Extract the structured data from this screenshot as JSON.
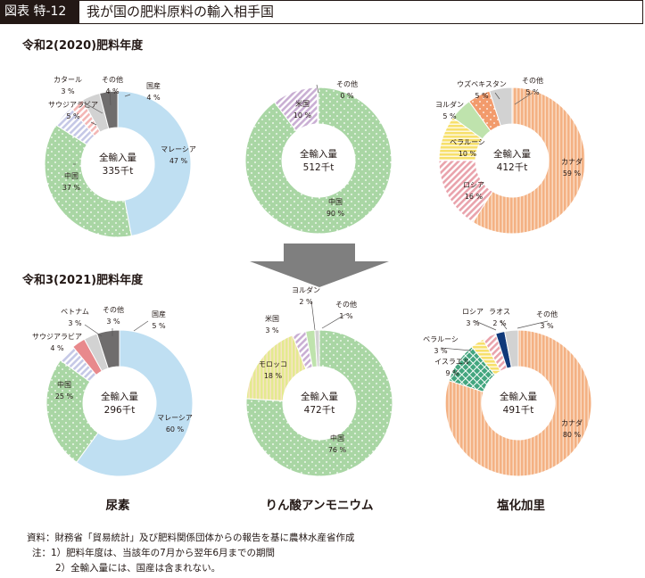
{
  "figure": {
    "tag": "図表 特-12",
    "title": "我が国の肥料原料の輸入相手国"
  },
  "year_labels": [
    "令和2(2020)肥料年度",
    "令和3(2021)肥料年度"
  ],
  "product_labels": [
    "尿素",
    "りん酸アンモニウム",
    "塩化加里"
  ],
  "notes": [
    "資料：財務省「貿易統計」及び肥料関係団体からの報告を基に農林水産省作成",
    "注：1）肥料年度は、当該年の7月から翌年6月までの期間",
    "2）全輸入量には、国産は含まれない。"
  ],
  "colors": {
    "malaysia": "#bfdff2",
    "china": "#a9d6a4",
    "canada": "#f4b183",
    "russia": "#e9a3ac",
    "morocco": "#e4ea8f",
    "saudi": "#c5c8e6",
    "qatar": "#f3b6b4",
    "vietnam": "#e8898c",
    "domestic": "#6f6d6d",
    "other": "#d2d2d2",
    "usa": "#c9aed3",
    "belarus": "#f7e06c",
    "jordan": "#bfe3ad",
    "uzbek": "#f29b6c",
    "israel": "#43a67f",
    "laos": "#10397a",
    "arrow": "#7f7f7f"
  },
  "chart_data": [
    {
      "type": "pie",
      "donut": true,
      "year": "令和2(2020)肥料年度",
      "product": "尿素",
      "center_label": "全輸入量",
      "center_value": "335千t",
      "slices": [
        {
          "name": "マレーシア",
          "value": 47,
          "label": "47 %",
          "color": "malaysia",
          "pattern": "plain"
        },
        {
          "name": "中国",
          "value": 37,
          "label": "37 %",
          "color": "china",
          "pattern": "dots"
        },
        {
          "name": "サウジアラビア",
          "value": 5,
          "label": "5 %",
          "color": "saudi",
          "pattern": "diag"
        },
        {
          "name": "カタール",
          "value": 3,
          "label": "3 %",
          "color": "qatar",
          "pattern": "diag"
        },
        {
          "name": "その他",
          "value": 4,
          "label": "4 %",
          "color": "other",
          "pattern": "plain"
        },
        {
          "name": "国産",
          "value": 4,
          "label": "4 %",
          "color": "domestic",
          "pattern": "plain"
        }
      ]
    },
    {
      "type": "pie",
      "donut": true,
      "year": "令和2(2020)肥料年度",
      "product": "りん酸アンモニウム",
      "center_label": "全輸入量",
      "center_value": "512千t",
      "slices": [
        {
          "name": "中国",
          "value": 90,
          "label": "90 %",
          "color": "china",
          "pattern": "dots"
        },
        {
          "name": "米国",
          "value": 10,
          "label": "10 %",
          "color": "usa",
          "pattern": "diag"
        },
        {
          "name": "その他",
          "value": 0.3,
          "label": "0 %",
          "color": "other",
          "pattern": "plain"
        }
      ]
    },
    {
      "type": "pie",
      "donut": true,
      "year": "令和2(2020)肥料年度",
      "product": "塩化加里",
      "center_label": "全輸入量",
      "center_value": "412千t",
      "slices": [
        {
          "name": "カナダ",
          "value": 59,
          "label": "59 %",
          "color": "canada",
          "pattern": "vstripe"
        },
        {
          "name": "ロシア",
          "value": 16,
          "label": "16 %",
          "color": "russia",
          "pattern": "diag"
        },
        {
          "name": "ベラルーシ",
          "value": 10,
          "label": "10 %",
          "color": "belarus",
          "pattern": "hstripe"
        },
        {
          "name": "ヨルダン",
          "value": 5,
          "label": "5 %",
          "color": "jordan",
          "pattern": "plain"
        },
        {
          "name": "ウズベキスタン",
          "value": 5,
          "label": "5 %",
          "color": "uzbek",
          "pattern": "dots"
        },
        {
          "name": "その他",
          "value": 5,
          "label": "5 %",
          "color": "other",
          "pattern": "plain"
        }
      ]
    },
    {
      "type": "pie",
      "donut": true,
      "year": "令和3(2021)肥料年度",
      "product": "尿素",
      "center_label": "全輸入量",
      "center_value": "296千t",
      "slices": [
        {
          "name": "マレーシア",
          "value": 60,
          "label": "60 %",
          "color": "malaysia",
          "pattern": "plain"
        },
        {
          "name": "中国",
          "value": 25,
          "label": "25 %",
          "color": "china",
          "pattern": "dots"
        },
        {
          "name": "サウジアラビア",
          "value": 4,
          "label": "4 %",
          "color": "saudi",
          "pattern": "diag"
        },
        {
          "name": "ベトナム",
          "value": 3,
          "label": "3 %",
          "color": "vietnam",
          "pattern": "plain"
        },
        {
          "name": "その他",
          "value": 3,
          "label": "3 %",
          "color": "other",
          "pattern": "plain"
        },
        {
          "name": "国産",
          "value": 5,
          "label": "5 %",
          "color": "domestic",
          "pattern": "plain"
        }
      ]
    },
    {
      "type": "pie",
      "donut": true,
      "year": "令和3(2021)肥料年度",
      "product": "りん酸アンモニウム",
      "center_label": "全輸入量",
      "center_value": "472千t",
      "slices": [
        {
          "name": "中国",
          "value": 76,
          "label": "76 %",
          "color": "china",
          "pattern": "dots"
        },
        {
          "name": "モロッコ",
          "value": 18,
          "label": "18 %",
          "color": "morocco",
          "pattern": "vstripe"
        },
        {
          "name": "米国",
          "value": 3,
          "label": "3 %",
          "color": "usa",
          "pattern": "diag"
        },
        {
          "name": "ヨルダン",
          "value": 2,
          "label": "2 %",
          "color": "jordan",
          "pattern": "plain"
        },
        {
          "name": "その他",
          "value": 1,
          "label": "1 %",
          "color": "other",
          "pattern": "plain"
        }
      ]
    },
    {
      "type": "pie",
      "donut": true,
      "year": "令和3(2021)肥料年度",
      "product": "塩化加里",
      "center_label": "全輸入量",
      "center_value": "491千t",
      "slices": [
        {
          "name": "カナダ",
          "value": 80,
          "label": "80 %",
          "color": "canada",
          "pattern": "vstripe"
        },
        {
          "name": "イスラエル",
          "value": 9,
          "label": "9 %",
          "color": "israel",
          "pattern": "check"
        },
        {
          "name": "ベラルーシ",
          "value": 3,
          "label": "3 %",
          "color": "belarus",
          "pattern": "hstripe"
        },
        {
          "name": "ロシア",
          "value": 3,
          "label": "3 %",
          "color": "russia",
          "pattern": "diag"
        },
        {
          "name": "ラオス",
          "value": 2,
          "label": "2 %",
          "color": "laos",
          "pattern": "plain"
        },
        {
          "name": "その他",
          "value": 3,
          "label": "3 %",
          "color": "other",
          "pattern": "plain"
        }
      ]
    }
  ]
}
